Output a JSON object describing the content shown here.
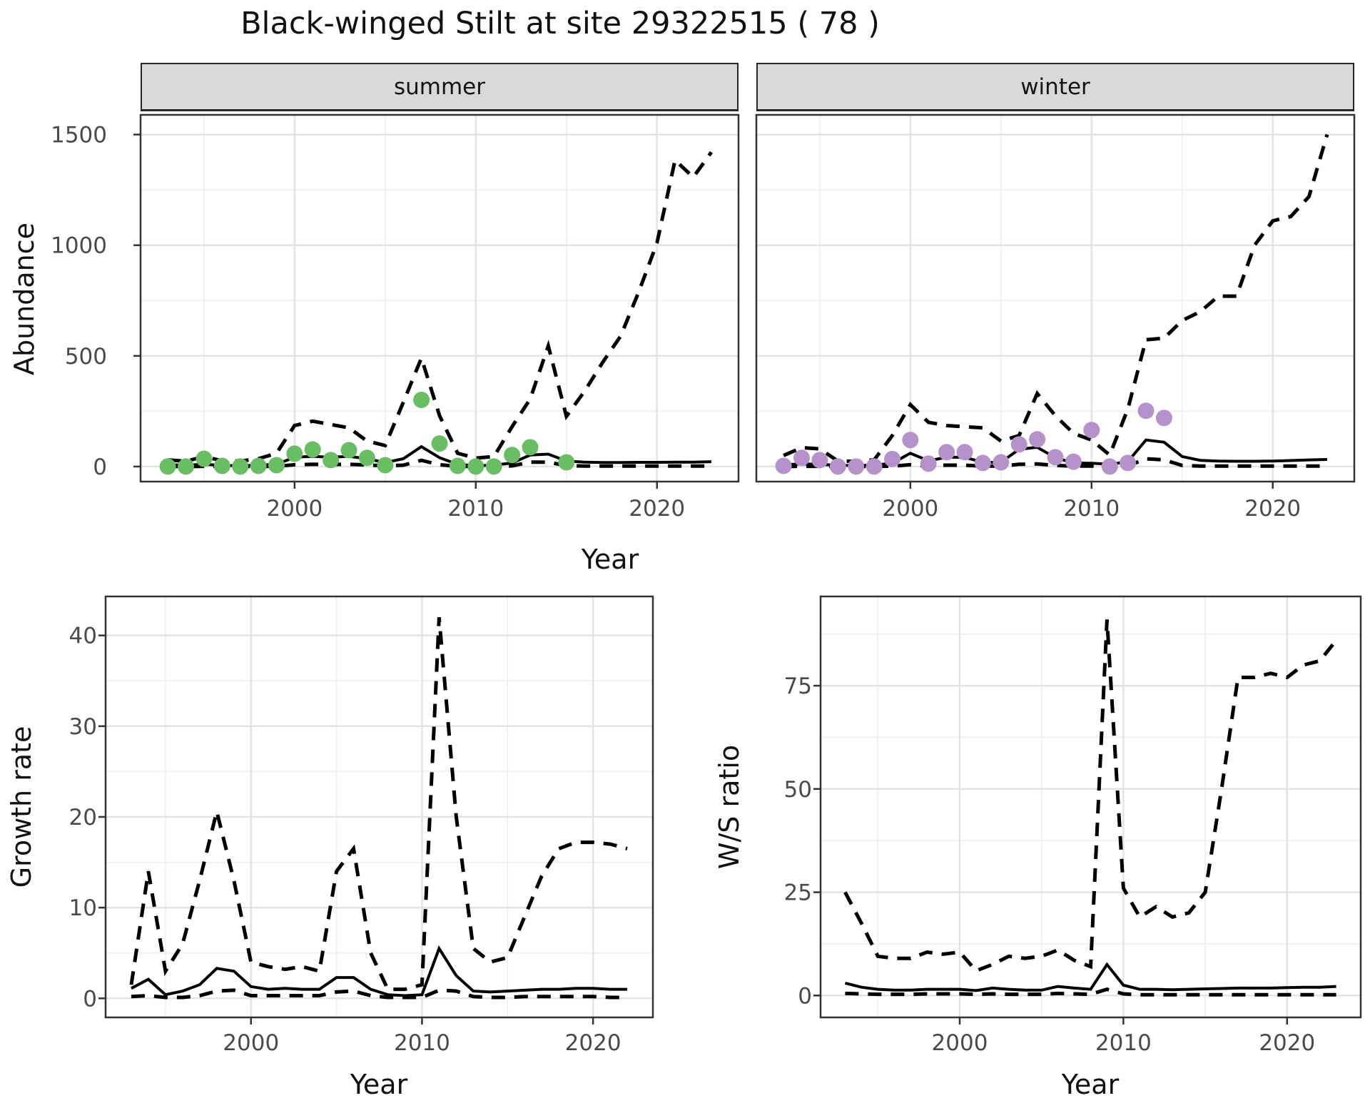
{
  "title": "Black-winged Stilt at site 29322515 ( 78 )",
  "colors": {
    "summer_points": "#69bd63",
    "winter_points": "#b592c9",
    "line": "#000000",
    "strip_bg": "#d9d9d9",
    "grid_major": "#e3e3e3",
    "grid_minor": "#f1f1f1",
    "panel_border": "#333333",
    "tick_text": "#4a4a4a"
  },
  "chart_data": [
    {
      "id": "abundance-summer",
      "type": "line",
      "facet": "summer",
      "xlabel": "Year",
      "ylabel": "Abundance",
      "grid": true,
      "legend": "none",
      "xlim": [
        1991.5,
        2024.5
      ],
      "ylim": [
        -68,
        1589
      ],
      "xticks": [
        2000,
        2010,
        2020
      ],
      "xminor": [
        1995,
        2005,
        2015
      ],
      "yticks": [
        0,
        500,
        1000,
        1500
      ],
      "yminor": [
        250,
        750,
        1250
      ],
      "x": [
        1993,
        1994,
        1995,
        1996,
        1997,
        1998,
        1999,
        2000,
        2001,
        2002,
        2003,
        2004,
        2005,
        2006,
        2007,
        2008,
        2009,
        2010,
        2011,
        2012,
        2013,
        2014,
        2015,
        2016,
        2017,
        2018,
        2019,
        2020,
        2021,
        2022,
        2023
      ],
      "series": [
        {
          "name": "median",
          "style": "solid",
          "values": [
            8,
            6,
            10,
            5,
            4,
            6,
            10,
            42,
            46,
            42,
            46,
            35,
            18,
            35,
            90,
            40,
            10,
            4,
            6,
            16,
            52,
            56,
            25,
            20,
            18,
            18,
            19,
            19,
            20,
            20,
            22
          ]
        },
        {
          "name": "lower-ci",
          "style": "dashed",
          "values": [
            0,
            0,
            1,
            0,
            0,
            0,
            1,
            8,
            10,
            9,
            10,
            7,
            3,
            6,
            28,
            8,
            1,
            0,
            0,
            3,
            20,
            20,
            4,
            2,
            2,
            2,
            2,
            2,
            2,
            2,
            2
          ]
        },
        {
          "name": "upper-ci",
          "style": "dashed",
          "values": [
            30,
            24,
            45,
            26,
            25,
            35,
            60,
            185,
            205,
            190,
            175,
            115,
            95,
            290,
            490,
            230,
            60,
            38,
            45,
            180,
            305,
            545,
            227,
            340,
            470,
            590,
            790,
            1010,
            1385,
            1307,
            1420
          ]
        }
      ],
      "points": {
        "name": "observed-summer-counts",
        "color": "#69bd63",
        "x": [
          1993,
          1994,
          1995,
          1996,
          1997,
          1998,
          1999,
          2000,
          2001,
          2002,
          2003,
          2004,
          2005,
          2007,
          2008,
          2009,
          2010,
          2011,
          2012,
          2013,
          2015
        ],
        "y": [
          0,
          0,
          35,
          3,
          0,
          3,
          6,
          58,
          77,
          29,
          74,
          39,
          6,
          301,
          104,
          3,
          0,
          0,
          52,
          87,
          19
        ]
      }
    },
    {
      "id": "abundance-winter",
      "type": "line",
      "facet": "winter",
      "xlabel": "Year",
      "ylabel": "Abundance",
      "grid": true,
      "legend": "none",
      "xlim": [
        1991.5,
        2024.5
      ],
      "ylim": [
        -68,
        1589
      ],
      "xticks": [
        2000,
        2010,
        2020
      ],
      "xminor": [
        1995,
        2005,
        2015
      ],
      "yticks": [
        0,
        500,
        1000,
        1500
      ],
      "yminor": [
        250,
        750,
        1250
      ],
      "x": [
        1993,
        1994,
        1995,
        1996,
        1997,
        1998,
        1999,
        2000,
        2001,
        2002,
        2003,
        2004,
        2005,
        2006,
        2007,
        2008,
        2009,
        2010,
        2011,
        2012,
        2013,
        2014,
        2015,
        2016,
        2017,
        2018,
        2019,
        2020,
        2021,
        2022,
        2023
      ],
      "series": [
        {
          "name": "median",
          "style": "solid",
          "values": [
            8,
            12,
            10,
            5,
            5,
            6,
            15,
            60,
            26,
            42,
            42,
            19,
            19,
            78,
            87,
            40,
            16,
            15,
            10,
            22,
            120,
            110,
            45,
            28,
            25,
            24,
            24,
            25,
            27,
            30,
            32
          ]
        },
        {
          "name": "lower-ci",
          "style": "dashed",
          "values": [
            0,
            1,
            1,
            0,
            0,
            0,
            2,
            8,
            3,
            6,
            6,
            2,
            2,
            10,
            12,
            5,
            2,
            2,
            1,
            3,
            35,
            30,
            5,
            2,
            2,
            2,
            2,
            2,
            2,
            2,
            2
          ]
        },
        {
          "name": "upper-ci",
          "style": "dashed",
          "values": [
            50,
            85,
            80,
            25,
            24,
            30,
            140,
            280,
            200,
            185,
            180,
            175,
            115,
            140,
            330,
            230,
            150,
            120,
            52,
            260,
            573,
            580,
            660,
            700,
            770,
            770,
            1000,
            1110,
            1130,
            1220,
            1500
          ]
        }
      ],
      "points": {
        "name": "observed-winter-counts",
        "color": "#b592c9",
        "x": [
          1993,
          1994,
          1995,
          1996,
          1997,
          1998,
          1999,
          2000,
          2001,
          2002,
          2003,
          2004,
          2005,
          2006,
          2007,
          2008,
          2009,
          2010,
          2011,
          2012,
          2013,
          2014
        ],
        "y": [
          3,
          39,
          29,
          0,
          0,
          0,
          34,
          120,
          13,
          65,
          65,
          16,
          19,
          100,
          123,
          42,
          22,
          165,
          0,
          16,
          252,
          220
        ]
      }
    },
    {
      "id": "growth-rate",
      "type": "line",
      "facet": "",
      "xlabel": "Year",
      "ylabel": "Growth rate",
      "grid": true,
      "legend": "none",
      "xlim": [
        1991.5,
        2023.5
      ],
      "ylim": [
        -2.1,
        44.3
      ],
      "xticks": [
        2000,
        2010,
        2020
      ],
      "xminor": [
        1995,
        2005,
        2015
      ],
      "yticks": [
        0,
        10,
        20,
        30,
        40
      ],
      "yminor": [
        5,
        15,
        25,
        35
      ],
      "x": [
        1993,
        1994,
        1995,
        1996,
        1997,
        1998,
        1999,
        2000,
        2001,
        2002,
        2003,
        2004,
        2005,
        2006,
        2007,
        2008,
        2009,
        2010,
        2011,
        2012,
        2013,
        2014,
        2015,
        2016,
        2017,
        2018,
        2019,
        2020,
        2021,
        2022
      ],
      "series": [
        {
          "name": "median",
          "style": "solid",
          "values": [
            1.1,
            2.1,
            0.4,
            0.8,
            1.5,
            3.3,
            3.0,
            1.3,
            1.0,
            1.1,
            1.0,
            1.0,
            2.3,
            2.3,
            1.0,
            0.4,
            0.3,
            0.4,
            5.5,
            2.5,
            0.8,
            0.7,
            0.8,
            0.9,
            1.0,
            1.0,
            1.1,
            1.1,
            1.0,
            1.0
          ]
        },
        {
          "name": "lower-ci",
          "style": "dashed",
          "values": [
            0.2,
            0.3,
            0.1,
            0.1,
            0.3,
            0.8,
            0.9,
            0.3,
            0.3,
            0.3,
            0.3,
            0.3,
            0.7,
            0.8,
            0.3,
            0.1,
            0.1,
            0.1,
            0.9,
            0.8,
            0.2,
            0.1,
            0.1,
            0.2,
            0.2,
            0.2,
            0.2,
            0.2,
            0.1,
            0.1
          ]
        },
        {
          "name": "upper-ci",
          "style": "dashed",
          "values": [
            1.5,
            14,
            3,
            6,
            13,
            20.6,
            13,
            4,
            3.5,
            3.2,
            3.5,
            3,
            14,
            16.5,
            5,
            1,
            1,
            1.5,
            42,
            20,
            5.5,
            4,
            4.5,
            9,
            13.5,
            16.5,
            17.2,
            17.2,
            17,
            16.5
          ]
        }
      ],
      "points": null
    },
    {
      "id": "ws-ratio",
      "type": "line",
      "facet": "",
      "xlabel": "Year",
      "ylabel": "W/S ratio",
      "grid": true,
      "legend": "none",
      "xlim": [
        1991.5,
        2024.5
      ],
      "ylim": [
        -5.3,
        96.6
      ],
      "xticks": [
        2000,
        2010,
        2020
      ],
      "xminor": [
        1995,
        2005,
        2015
      ],
      "yticks": [
        0,
        25,
        50,
        75
      ],
      "yminor": [
        12.5,
        37.5,
        62.5,
        87.5
      ],
      "x": [
        1993,
        1994,
        1995,
        1996,
        1997,
        1998,
        1999,
        2000,
        2001,
        2002,
        2003,
        2004,
        2005,
        2006,
        2007,
        2008,
        2009,
        2010,
        2011,
        2012,
        2013,
        2014,
        2015,
        2016,
        2017,
        2018,
        2019,
        2020,
        2021,
        2022,
        2023
      ],
      "series": [
        {
          "name": "median",
          "style": "solid",
          "values": [
            3,
            2,
            1.5,
            1.3,
            1.3,
            1.5,
            1.5,
            1.5,
            1.2,
            1.8,
            1.5,
            1.3,
            1.3,
            2.2,
            1.8,
            1.5,
            7.5,
            2.5,
            1.5,
            1.5,
            1.4,
            1.5,
            1.6,
            1.7,
            1.8,
            1.8,
            1.8,
            1.9,
            2,
            2,
            2.2
          ]
        },
        {
          "name": "lower-ci",
          "style": "dashed",
          "values": [
            0.5,
            0.4,
            0.3,
            0.3,
            0.3,
            0.4,
            0.4,
            0.4,
            0.3,
            0.4,
            0.3,
            0.3,
            0.3,
            0.5,
            0.4,
            0.3,
            1.5,
            0.4,
            0.2,
            0.2,
            0.2,
            0.2,
            0.2,
            0.2,
            0.2,
            0.2,
            0.2,
            0.2,
            0.2,
            0.2,
            0.2
          ]
        },
        {
          "name": "upper-ci",
          "style": "dashed",
          "values": [
            25,
            17.5,
            9.5,
            9,
            9,
            10.5,
            10,
            10.5,
            6,
            7.5,
            9.5,
            9,
            9.5,
            11,
            8.5,
            7,
            91,
            26,
            19,
            21.5,
            19,
            20,
            25,
            50,
            77,
            77,
            78,
            77,
            80,
            81,
            86
          ]
        }
      ],
      "points": null
    }
  ]
}
